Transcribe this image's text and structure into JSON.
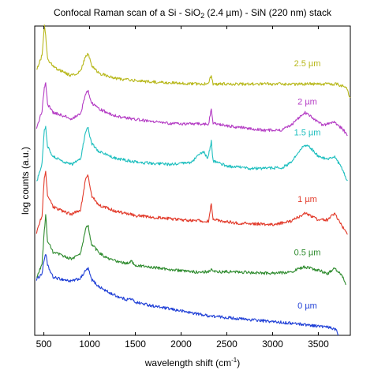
{
  "chart_data": {
    "type": "line",
    "title": {
      "prefix": "Confocal Raman scan of a Si - SiO",
      "sub": "2",
      "suffix": " (2.4 µm) - SiN (220 nm) stack"
    },
    "xlabel": {
      "main": "wavelength shift (cm",
      "sup": "-1",
      "close": ")"
    },
    "ylabel": "log counts (a.u.)",
    "xlim": [
      400,
      3850
    ],
    "ylim": [
      0,
      9.5
    ],
    "x_ticks": [
      500,
      1000,
      1500,
      2000,
      2500,
      3000,
      3500
    ],
    "y_ticks_labeled": false,
    "grid": false,
    "series": [
      {
        "name": "0 µm",
        "color": "#1f3fd6",
        "baseline": 0.0,
        "label_x": 3380,
        "label_offset": 0.5,
        "points": [
          [
            420,
            1.72
          ],
          [
            480,
            1.9
          ],
          [
            505,
            2.35
          ],
          [
            520,
            2.52
          ],
          [
            540,
            2.15
          ],
          [
            600,
            1.78
          ],
          [
            700,
            1.72
          ],
          [
            800,
            1.66
          ],
          [
            900,
            1.75
          ],
          [
            960,
            2.0
          ],
          [
            985,
            2.05
          ],
          [
            1020,
            1.72
          ],
          [
            1100,
            1.5
          ],
          [
            1200,
            1.33
          ],
          [
            1300,
            1.2
          ],
          [
            1400,
            1.1
          ],
          [
            1455,
            1.12
          ],
          [
            1500,
            1.02
          ],
          [
            1700,
            0.9
          ],
          [
            2000,
            0.75
          ],
          [
            2300,
            0.6
          ],
          [
            2600,
            0.52
          ],
          [
            3000,
            0.42
          ],
          [
            3300,
            0.35
          ],
          [
            3600,
            0.25
          ],
          [
            3700,
            0.18
          ],
          [
            3720,
            0.0
          ]
        ]
      },
      {
        "name": "0.5 µm",
        "color": "#2e8b2e",
        "baseline": 1.45,
        "label_x": 3380,
        "label_offset": 0.38,
        "points": [
          [
            420,
            1.75
          ],
          [
            480,
            2.2
          ],
          [
            505,
            3.2
          ],
          [
            520,
            3.7
          ],
          [
            540,
            2.9
          ],
          [
            600,
            2.55
          ],
          [
            700,
            2.45
          ],
          [
            800,
            2.35
          ],
          [
            900,
            2.5
          ],
          [
            960,
            3.3
          ],
          [
            985,
            3.35
          ],
          [
            1020,
            2.8
          ],
          [
            1100,
            2.55
          ],
          [
            1200,
            2.35
          ],
          [
            1400,
            2.2
          ],
          [
            1460,
            2.28
          ],
          [
            1500,
            2.15
          ],
          [
            1800,
            2.05
          ],
          [
            2100,
            1.95
          ],
          [
            2300,
            1.95
          ],
          [
            2330,
            2.05
          ],
          [
            2350,
            1.95
          ],
          [
            2600,
            1.95
          ],
          [
            3000,
            1.9
          ],
          [
            3200,
            1.95
          ],
          [
            3350,
            2.1
          ],
          [
            3500,
            2.0
          ],
          [
            3600,
            1.9
          ],
          [
            3680,
            2.05
          ],
          [
            3760,
            1.85
          ],
          [
            3800,
            1.55
          ]
        ]
      },
      {
        "name": "1 µm",
        "color": "#e23a2a",
        "baseline": 2.9,
        "label_x": 3380,
        "label_offset": 0.38,
        "points": [
          [
            420,
            3.15
          ],
          [
            480,
            3.7
          ],
          [
            505,
            4.8
          ],
          [
            520,
            5.0
          ],
          [
            540,
            4.3
          ],
          [
            600,
            3.95
          ],
          [
            700,
            3.82
          ],
          [
            800,
            3.72
          ],
          [
            900,
            3.85
          ],
          [
            960,
            4.85
          ],
          [
            985,
            4.9
          ],
          [
            1020,
            4.3
          ],
          [
            1100,
            4.0
          ],
          [
            1300,
            3.8
          ],
          [
            1460,
            3.72
          ],
          [
            1500,
            3.68
          ],
          [
            2000,
            3.55
          ],
          [
            2200,
            3.52
          ],
          [
            2300,
            3.5
          ],
          [
            2330,
            4.05
          ],
          [
            2350,
            3.55
          ],
          [
            2600,
            3.45
          ],
          [
            3000,
            3.4
          ],
          [
            3200,
            3.5
          ],
          [
            3350,
            3.75
          ],
          [
            3500,
            3.55
          ],
          [
            3600,
            3.55
          ],
          [
            3680,
            3.75
          ],
          [
            3760,
            3.35
          ],
          [
            3820,
            3.1
          ]
        ]
      },
      {
        "name": "1.5 µm",
        "color": "#1fbfbf",
        "baseline": 4.35,
        "label_x": 3380,
        "label_offset": 0.32,
        "points": [
          [
            420,
            4.7
          ],
          [
            480,
            5.3
          ],
          [
            505,
            6.3
          ],
          [
            520,
            6.4
          ],
          [
            540,
            5.8
          ],
          [
            600,
            5.5
          ],
          [
            700,
            5.35
          ],
          [
            800,
            5.25
          ],
          [
            900,
            5.4
          ],
          [
            960,
            6.3
          ],
          [
            985,
            6.35
          ],
          [
            1020,
            5.9
          ],
          [
            1100,
            5.65
          ],
          [
            1300,
            5.42
          ],
          [
            1460,
            5.35
          ],
          [
            1600,
            5.3
          ],
          [
            1900,
            5.25
          ],
          [
            2100,
            5.3
          ],
          [
            2200,
            5.55
          ],
          [
            2250,
            5.65
          ],
          [
            2290,
            5.4
          ],
          [
            2330,
            5.95
          ],
          [
            2350,
            5.35
          ],
          [
            2500,
            5.2
          ],
          [
            2800,
            5.12
          ],
          [
            3100,
            5.15
          ],
          [
            3200,
            5.3
          ],
          [
            3350,
            5.85
          ],
          [
            3400,
            5.8
          ],
          [
            3500,
            5.5
          ],
          [
            3600,
            5.4
          ],
          [
            3680,
            5.5
          ],
          [
            3760,
            5.1
          ],
          [
            3820,
            4.75
          ]
        ]
      },
      {
        "name": "2 µm",
        "color": "#b43cc4",
        "baseline": 5.8,
        "label_x": 3380,
        "label_offset": 0.3,
        "points": [
          [
            420,
            6.35
          ],
          [
            480,
            6.9
          ],
          [
            505,
            7.6
          ],
          [
            520,
            7.8
          ],
          [
            540,
            7.1
          ],
          [
            600,
            6.85
          ],
          [
            700,
            6.75
          ],
          [
            800,
            6.65
          ],
          [
            900,
            6.8
          ],
          [
            960,
            7.45
          ],
          [
            985,
            7.5
          ],
          [
            1020,
            7.15
          ],
          [
            1100,
            6.95
          ],
          [
            1300,
            6.72
          ],
          [
            1600,
            6.6
          ],
          [
            1900,
            6.5
          ],
          [
            2100,
            6.5
          ],
          [
            2200,
            6.5
          ],
          [
            2300,
            6.48
          ],
          [
            2330,
            6.95
          ],
          [
            2350,
            6.5
          ],
          [
            2600,
            6.4
          ],
          [
            2900,
            6.3
          ],
          [
            3100,
            6.3
          ],
          [
            3200,
            6.45
          ],
          [
            3350,
            6.85
          ],
          [
            3450,
            6.65
          ],
          [
            3550,
            6.45
          ],
          [
            3680,
            6.55
          ],
          [
            3760,
            6.35
          ],
          [
            3820,
            6.15
          ]
        ]
      },
      {
        "name": "2.5 µm",
        "color": "#b8b81c",
        "baseline": 7.2,
        "label_x": 3380,
        "label_offset": 0.55,
        "points": [
          [
            420,
            8.15
          ],
          [
            480,
            8.6
          ],
          [
            505,
            9.5
          ],
          [
            520,
            9.2
          ],
          [
            540,
            8.5
          ],
          [
            600,
            8.25
          ],
          [
            700,
            8.1
          ],
          [
            800,
            7.98
          ],
          [
            900,
            8.1
          ],
          [
            960,
            8.6
          ],
          [
            985,
            8.65
          ],
          [
            1020,
            8.3
          ],
          [
            1100,
            8.05
          ],
          [
            1300,
            7.88
          ],
          [
            1600,
            7.8
          ],
          [
            1900,
            7.75
          ],
          [
            2200,
            7.72
          ],
          [
            2300,
            7.72
          ],
          [
            2330,
            8.0
          ],
          [
            2350,
            7.72
          ],
          [
            2700,
            7.72
          ],
          [
            3100,
            7.72
          ],
          [
            3400,
            7.72
          ],
          [
            3700,
            7.72
          ],
          [
            3800,
            7.62
          ],
          [
            3850,
            7.3
          ]
        ]
      }
    ]
  }
}
